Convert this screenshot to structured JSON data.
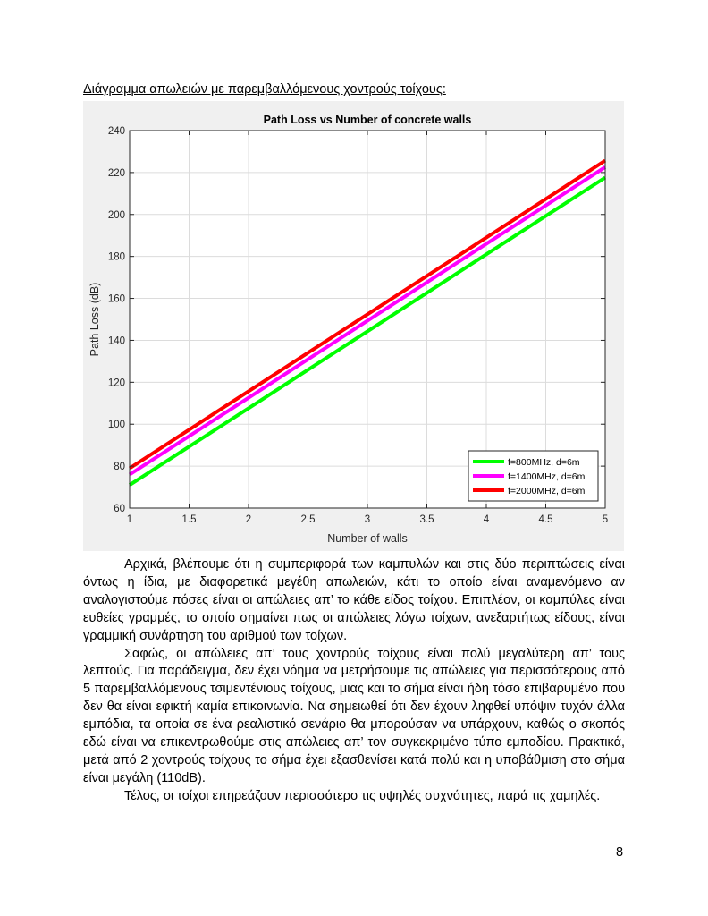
{
  "document": {
    "heading": "Διάγραμμα απωλειών με παρεμβαλλόμενους χοντρούς τοίχους:",
    "paragraphs": [
      "Αρχικά, βλέπουμε ότι η συμπεριφορά των καμπυλών και στις δύο περιπτώσεις είναι όντως η ίδια, με διαφορετικά μεγέθη απωλειών, κάτι το οποίο είναι αναμενόμενο αν αναλογιστούμε πόσες είναι οι απώλειες απ’ το κάθε είδος τοίχου. Επιπλέον, οι καμπύλες είναι ευθείες γραμμές, το οποίο σημαίνει πως οι απώλειες λόγω τοίχων, ανεξαρτήτως είδους, είναι γραμμική συνάρτηση του αριθμού των τοίχων.",
      "Σαφώς, οι απώλειες απ’ τους χοντρούς τοίχους είναι πολύ μεγαλύτερη απ’ τους λεπτούς. Για παράδειγμα, δεν έχει νόημα να μετρήσουμε τις απώλειες για περισσότερους από 5 παρεμβαλλόμενους τσιμεντένιους τοίχους, μιας και το σήμα είναι ήδη τόσο επιβαρυμένο που δεν θα είναι εφικτή καμία επικοινωνία. Να σημειωθεί ότι δεν έχουν ληφθεί υπόψιν τυχόν άλλα εμπόδια, τα οποία σε ένα ρεαλιστικό σενάριο θα μπορούσαν να υπάρχουν, καθώς ο σκοπός εδώ είναι να επικεντρωθούμε στις απώλειες απ’ τον συγκεκριμένο τύπο εμποδίου. Πρακτικά, μετά από 2 χοντρούς τοίχους το σήμα έχει εξασθενίσει κατά πολύ και η υποβάθμιση στο σήμα είναι μεγάλη (110dB).",
      "Τέλος, οι τοίχοι επηρεάζουν περισσότερο τις υψηλές συχνότητες, παρά τις χαμηλές."
    ],
    "page_number": "8"
  },
  "chart_data": {
    "type": "line",
    "title": "Path Loss vs Number of concrete walls",
    "xlabel": "Number of walls",
    "ylabel": "Path Loss (dB)",
    "xlim": [
      1,
      5
    ],
    "ylim": [
      60,
      240
    ],
    "xticks": [
      1,
      1.5,
      2,
      2.5,
      3,
      3.5,
      4,
      4.5,
      5
    ],
    "xtick_labels": [
      "1",
      "1.5",
      "2",
      "2.5",
      "3",
      "3.5",
      "4",
      "4.5",
      "5"
    ],
    "yticks": [
      60,
      80,
      100,
      120,
      140,
      160,
      180,
      200,
      220,
      240
    ],
    "ytick_labels": [
      "60",
      "80",
      "100",
      "120",
      "140",
      "160",
      "180",
      "200",
      "220",
      "240"
    ],
    "grid": true,
    "legend_location": "bottom-right",
    "background": "#f0f0f0",
    "x": [
      1,
      2,
      3,
      4,
      5
    ],
    "series": [
      {
        "name": "f=800MHz,   d=6m",
        "color": "#00ff00",
        "values": [
          71,
          107.6,
          144.3,
          181,
          217.6
        ]
      },
      {
        "name": "f=1400MHz, d=6m",
        "color": "#ff00ff",
        "values": [
          76,
          112.6,
          149.3,
          186,
          222.6
        ]
      },
      {
        "name": "f=2000MHz, d=6m",
        "color": "#ff0000",
        "values": [
          79,
          115.7,
          152.4,
          189,
          225.7
        ]
      }
    ]
  }
}
